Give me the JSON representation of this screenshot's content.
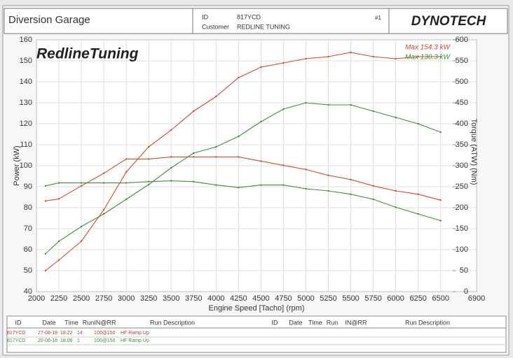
{
  "header": {
    "title": "Diversion Garage",
    "id_label": "ID",
    "id": "817YCD",
    "customer_label": "Customer",
    "customer": "REDLINE TUNING",
    "page": "#1",
    "brand": "DYNOTECH"
  },
  "chart_data": {
    "type": "line",
    "logo": "RedlineTuning",
    "xlabel": "Engine Speed [Tacho] (rpm)",
    "ylabel": "Power (kW)",
    "y2label": "Torque (ATW) (Nm)",
    "x": [
      2100,
      2250,
      2500,
      2750,
      3000,
      3250,
      3500,
      3750,
      4000,
      4250,
      4500,
      4750,
      5000,
      5250,
      5500,
      5750,
      6000,
      6250,
      6500
    ],
    "xlim": [
      2000,
      6900
    ],
    "xticks": [
      2000,
      2250,
      2500,
      2750,
      3000,
      3250,
      3500,
      3750,
      4000,
      4250,
      4500,
      4750,
      5000,
      5250,
      5500,
      5750,
      6000,
      6250,
      6500,
      6900
    ],
    "ylim": [
      40,
      160
    ],
    "yticks": [
      40,
      50,
      60,
      70,
      80,
      90,
      100,
      110,
      120,
      130,
      140,
      150,
      160
    ],
    "y2lim": [
      0,
      600
    ],
    "y2ticks": [
      0,
      50,
      100,
      150,
      200,
      250,
      300,
      350,
      400,
      450,
      500,
      550,
      600
    ],
    "series": [
      {
        "name": "Max 154.3 kW",
        "color": "#d24a2e",
        "values": [
          50,
          55,
          64,
          79,
          97,
          109,
          117,
          126,
          133,
          142,
          147,
          149,
          151,
          152,
          154,
          152,
          151,
          152,
          152
        ]
      },
      {
        "color": "#d24a2e",
        "axis": "y2",
        "values": [
          216,
          221,
          252,
          282,
          316,
          316,
          321,
          321,
          321,
          321,
          311,
          301,
          291,
          277,
          267,
          252,
          240,
          232,
          218
        ]
      },
      {
        "name": "Max 130.3 kW",
        "color": "#3f8f3a",
        "values": [
          58,
          64,
          71,
          77,
          84,
          91,
          99,
          106,
          109,
          114,
          121,
          127,
          130,
          129,
          129,
          126,
          123,
          120,
          116
        ]
      },
      {
        "color": "#3f8f3a",
        "axis": "y2",
        "values": [
          252,
          259,
          259,
          259,
          259,
          262,
          264,
          262,
          254,
          248,
          254,
          254,
          245,
          240,
          232,
          220,
          201,
          185,
          169
        ]
      }
    ]
  },
  "table": {
    "headers": [
      "ID",
      "Date",
      "Time",
      "Run",
      "IN@RR",
      "Run Description",
      "ID",
      "Date",
      "Time",
      "Run",
      "IN@RR",
      "Run Description"
    ],
    "rows": [
      [
        "817YCD",
        "27-08-18",
        "18:22",
        "14",
        "100@150",
        "HF Ramp Up"
      ],
      [
        "817YCD",
        "20-08-18",
        "18:06",
        "1",
        "100@150",
        "HF Ramp Up"
      ]
    ],
    "row_colors": [
      "#c0392b",
      "#3f8f3a"
    ]
  }
}
